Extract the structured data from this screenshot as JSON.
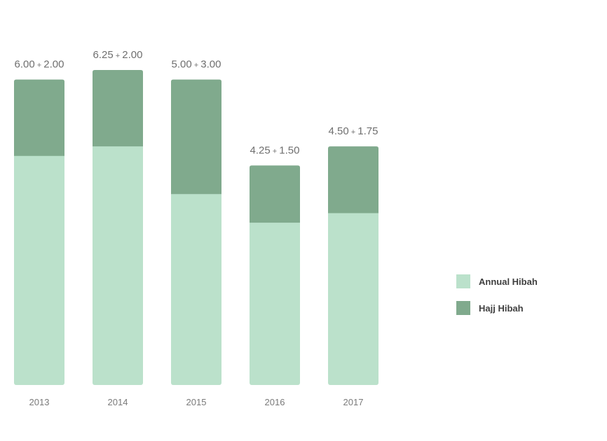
{
  "chart_data": {
    "type": "bar",
    "stacked": true,
    "categories": [
      "2013",
      "2014",
      "2015",
      "2016",
      "2017"
    ],
    "series": [
      {
        "name": "Annual Hibah",
        "values": [
          6.0,
          6.25,
          5.0,
          4.25,
          4.5
        ],
        "color": "#bbe1cb"
      },
      {
        "name": "Hajj Hibah",
        "values": [
          2.0,
          2.0,
          3.0,
          1.5,
          1.75
        ],
        "color": "#80aa8d"
      }
    ],
    "data_labels": [
      "6.00 + 2.00",
      "6.25 + 2.00",
      "5.00 + 3.00",
      "4.25 + 1.50",
      "4.50 + 1.75"
    ],
    "title": "",
    "xlabel": "",
    "ylabel": "",
    "ylim": [
      0,
      8.25
    ],
    "grid": false,
    "legend_position": "right"
  },
  "colors": {
    "label_text": "#6f6f6f",
    "tick_text": "#7a7a7a",
    "legend_text": "#3f3f3f"
  }
}
